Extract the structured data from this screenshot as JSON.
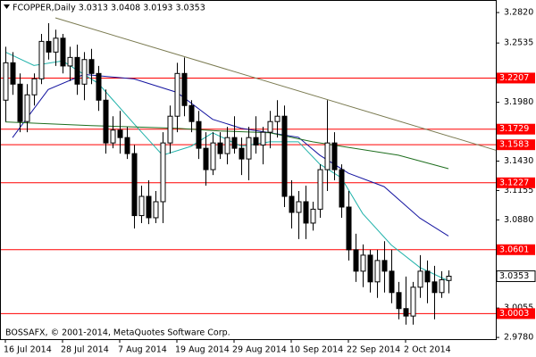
{
  "chart_data": {
    "type": "candlestick",
    "title": "FCOPPER,Daily  3.0313 3.0408 3.0193 3.0353",
    "footer": "BOSSAFX, © 2001-2014, MetaQuotes Software Corp.",
    "categories": [
      "16 Jul 2014",
      null,
      null,
      null,
      null,
      null,
      null,
      null,
      "28 Jul 2014",
      null,
      null,
      null,
      null,
      null,
      null,
      null,
      "7 Aug 2014",
      null,
      null,
      null,
      null,
      null,
      null,
      null,
      "19 Aug 2014",
      null,
      null,
      null,
      null,
      null,
      null,
      null,
      "29 Aug 2014",
      null,
      null,
      null,
      null,
      null,
      null,
      null,
      "10 Sep 2014",
      null,
      null,
      null,
      null,
      null,
      null,
      null,
      "22 Sep 2014",
      null,
      null,
      null,
      null,
      null,
      null,
      null,
      "2 Oct 2014",
      null,
      null,
      null,
      null,
      null,
      null
    ],
    "open": [
      3.2,
      3.235,
      3.215,
      3.18,
      3.205,
      3.22,
      3.255,
      3.245,
      3.258,
      3.232,
      3.24,
      3.215,
      3.238,
      3.225,
      3.2,
      3.16,
      3.172,
      3.165,
      3.15,
      3.092,
      3.11,
      3.09,
      3.105,
      3.16,
      3.185,
      3.225,
      3.195,
      3.18,
      3.155,
      3.135,
      3.16,
      3.15,
      3.165,
      3.155,
      3.145,
      3.165,
      3.158,
      3.17,
      3.18,
      3.185,
      3.11,
      3.095,
      3.105,
      3.085,
      3.098,
      3.135,
      3.16,
      3.135,
      3.1,
      3.06,
      3.04,
      3.055,
      3.03,
      3.05,
      3.04,
      3.02,
      3.005,
      2.998,
      3.025,
      3.04,
      3.03,
      3.02,
      3.0313
    ],
    "high": [
      3.25,
      3.245,
      3.225,
      3.215,
      3.225,
      3.262,
      3.272,
      3.266,
      3.262,
      3.25,
      3.252,
      3.245,
      3.248,
      3.232,
      3.21,
      3.185,
      3.19,
      3.175,
      3.158,
      3.12,
      3.125,
      3.115,
      3.17,
      3.195,
      3.235,
      3.24,
      3.2,
      3.19,
      3.17,
      3.17,
      3.17,
      3.175,
      3.185,
      3.165,
      3.175,
      3.185,
      3.175,
      3.19,
      3.2,
      3.195,
      3.125,
      3.115,
      3.12,
      3.105,
      3.14,
      3.2,
      3.17,
      3.14,
      3.115,
      3.075,
      3.065,
      3.06,
      3.06,
      3.068,
      3.06,
      3.03,
      3.035,
      3.03,
      3.055,
      3.05,
      3.045,
      3.04,
      3.0408
    ],
    "low": [
      3.18,
      3.205,
      3.17,
      3.17,
      3.195,
      3.215,
      3.238,
      3.232,
      3.225,
      3.218,
      3.205,
      3.2,
      3.215,
      3.19,
      3.15,
      3.155,
      3.15,
      3.145,
      3.08,
      3.085,
      3.084,
      3.085,
      3.085,
      3.15,
      3.17,
      3.185,
      3.17,
      3.145,
      3.12,
      3.13,
      3.145,
      3.14,
      3.15,
      3.13,
      3.125,
      3.15,
      3.14,
      3.155,
      3.165,
      3.1,
      3.08,
      3.07,
      3.07,
      3.078,
      3.09,
      3.115,
      3.125,
      3.09,
      3.05,
      3.03,
      3.025,
      3.02,
      3.015,
      3.02,
      3.01,
      2.995,
      2.99,
      2.99,
      3.015,
      3.01,
      2.995,
      3.015,
      3.0193
    ],
    "close": [
      3.235,
      3.215,
      3.18,
      3.205,
      3.22,
      3.255,
      3.245,
      3.258,
      3.232,
      3.24,
      3.215,
      3.238,
      3.225,
      3.2,
      3.16,
      3.172,
      3.165,
      3.15,
      3.092,
      3.11,
      3.09,
      3.105,
      3.16,
      3.185,
      3.225,
      3.195,
      3.18,
      3.155,
      3.135,
      3.16,
      3.15,
      3.165,
      3.155,
      3.145,
      3.165,
      3.158,
      3.17,
      3.18,
      3.185,
      3.11,
      3.095,
      3.105,
      3.085,
      3.098,
      3.135,
      3.16,
      3.135,
      3.1,
      3.06,
      3.04,
      3.055,
      3.03,
      3.05,
      3.04,
      3.02,
      3.005,
      2.998,
      3.025,
      3.04,
      3.03,
      3.02,
      3.032,
      3.0353
    ],
    "moving_averages": [
      {
        "color": "#20b2aa",
        "x": [
          0,
          4,
          8,
          13,
          18,
          22,
          26,
          29,
          33,
          37,
          41,
          44,
          47,
          50,
          54,
          58,
          62
        ],
        "values": [
          3.245,
          3.2325,
          3.2367,
          3.2157,
          3.1779,
          3.1485,
          3.1569,
          3.1695,
          3.1569,
          3.1611,
          3.1611,
          3.1401,
          3.1275,
          3.0939,
          3.0645,
          3.0435,
          3.0309
        ]
      },
      {
        "color": "#1414a0",
        "x": [
          1,
          6,
          11,
          18,
          24,
          29,
          33,
          37,
          41,
          44,
          48,
          53,
          58,
          62
        ],
        "values": [
          3.165,
          3.21,
          3.2241,
          3.2199,
          3.2073,
          3.1821,
          3.1737,
          3.1695,
          3.1653,
          3.1485,
          3.1317,
          3.1191,
          3.0897,
          3.0729
        ]
      },
      {
        "color": "#1e6e1e",
        "x": [
          0,
          12,
          24,
          30,
          37,
          43,
          55,
          62
        ],
        "values": [
          3.1796,
          3.1762,
          3.1737,
          3.1712,
          3.1695,
          3.1611,
          3.1485,
          3.1359
        ]
      }
    ],
    "trendline": {
      "color": "#7a7a50",
      "x": [
        7,
        62
      ],
      "values": [
        3.277,
        3.1665
      ]
    },
    "levels": [
      {
        "value": 3.2207,
        "color": "#ff0000"
      },
      {
        "value": 3.1729,
        "color": "#ff0000"
      },
      {
        "value": 3.1583,
        "color": "#ff0000"
      },
      {
        "value": 3.1227,
        "color": "#ff0000"
      },
      {
        "value": 3.0601,
        "color": "#ff0000"
      },
      {
        "value": 3.0003,
        "color": "#ff0000"
      }
    ],
    "last_price": 3.0353,
    "ylim": [
      2.9764,
      3.2929
    ],
    "yticks": [
      {
        "value": 3.282,
        "label": "3.2820"
      },
      3.2535,
      {
        "value": 3.198,
        "label": "3.1980"
      },
      {
        "value": 3.143,
        "label": "3.1430"
      },
      3.1155,
      {
        "value": 3.088,
        "label": "3.0880"
      },
      3.0055,
      {
        "value": 2.978,
        "label": "2.9780"
      }
    ]
  }
}
